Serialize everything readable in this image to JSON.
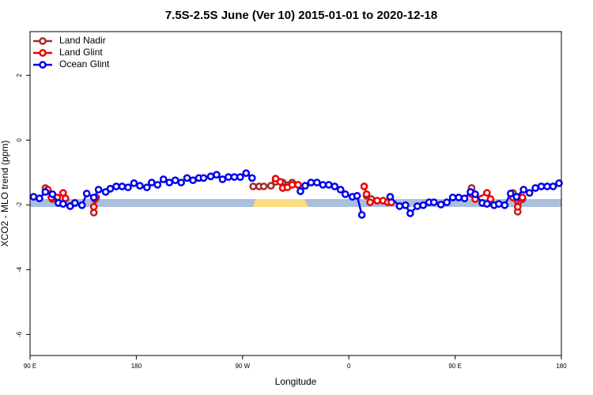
{
  "chart_data": {
    "type": "line",
    "title": "7.5S-2.5S June (Ver 10)   2015-01-01 to 2020-12-18",
    "x_label": "Longitude",
    "y_label": "XCO2 - MLO trend (ppm)",
    "xlim": [
      90,
      540
    ],
    "ylim": [
      -6.65,
      3.35
    ],
    "xticks": [
      {
        "value": 90,
        "label": "90 E"
      },
      {
        "value": 180,
        "label": "180"
      },
      {
        "value": 270,
        "label": "90 W"
      },
      {
        "value": 360,
        "label": "0"
      },
      {
        "value": 450,
        "label": "90 E"
      },
      {
        "value": 540,
        "label": "180"
      }
    ],
    "yticks": [
      -6,
      -4,
      -2,
      0,
      2
    ],
    "legend": "top-left",
    "series": [
      {
        "name": "Land Nadir",
        "color": "#a52a2a",
        "x": [
          103,
          109,
          null,
          144,
          146,
          null,
          279,
          284,
          288,
          294,
          298,
          304,
          312,
          317,
          null,
          375,
          379,
          null,
          464,
          467,
          null,
          499,
          503,
          507
        ],
        "values": [
          -1.48,
          -1.82,
          null,
          -2.24,
          -1.77,
          null,
          -1.43,
          -1.43,
          -1.43,
          -1.41,
          -1.29,
          -1.31,
          -1.31,
          -1.38,
          null,
          -1.72,
          -1.82,
          null,
          -1.48,
          -1.72,
          null,
          -1.63,
          -2.21,
          -1.82
        ]
      },
      {
        "name": "Land Glint",
        "color": "#ee0000",
        "x": [
          105,
          108,
          113,
          118,
          120,
          null,
          144,
          145,
          null,
          298,
          302,
          304,
          308,
          312,
          317,
          null,
          373,
          375,
          378,
          384,
          389,
          393,
          396,
          null,
          464,
          467,
          477,
          480,
          null,
          499,
          503,
          504,
          507
        ],
        "values": [
          -1.53,
          -1.77,
          -1.77,
          -1.63,
          -1.8,
          null,
          -2.06,
          -1.82,
          null,
          -1.19,
          -1.29,
          -1.48,
          -1.46,
          -1.38,
          -1.38,
          null,
          -1.43,
          -1.67,
          -1.92,
          -1.87,
          -1.87,
          -1.92,
          -1.92,
          null,
          -1.67,
          -1.82,
          -1.63,
          -1.82,
          null,
          -1.77,
          -2.06,
          -1.77,
          -1.77
        ]
      },
      {
        "name": "Ocean Glint",
        "color": "#0000ee",
        "x": [
          93,
          98,
          103,
          109,
          114,
          118,
          124,
          128,
          134,
          138,
          144,
          148,
          154,
          158,
          163,
          168,
          173,
          178,
          183,
          189,
          193,
          198,
          203,
          208,
          213,
          218,
          223,
          228,
          233,
          237,
          243,
          248,
          253,
          258,
          263,
          268,
          273,
          278,
          null,
          319,
          323,
          328,
          333,
          338,
          343,
          348,
          353,
          357,
          363,
          367,
          371,
          null,
          395,
          403,
          408,
          412,
          418,
          423,
          428,
          432,
          438,
          443,
          448,
          453,
          458,
          463,
          467,
          473,
          477,
          483,
          487,
          492,
          497,
          502,
          508,
          513,
          518,
          523,
          528,
          533,
          538
        ],
        "values": [
          -1.75,
          -1.8,
          -1.6,
          -1.67,
          -1.94,
          -1.97,
          -2.04,
          -1.94,
          -2.01,
          -1.65,
          -1.77,
          -1.53,
          -1.6,
          -1.5,
          -1.43,
          -1.43,
          -1.46,
          -1.33,
          -1.41,
          -1.46,
          -1.31,
          -1.38,
          -1.21,
          -1.31,
          -1.24,
          -1.31,
          -1.17,
          -1.24,
          -1.17,
          -1.17,
          -1.12,
          -1.07,
          -1.21,
          -1.14,
          -1.14,
          -1.14,
          -1.02,
          -1.17,
          null,
          -1.58,
          -1.41,
          -1.31,
          -1.31,
          -1.38,
          -1.38,
          -1.43,
          -1.53,
          -1.67,
          -1.75,
          -1.72,
          -2.31,
          null,
          -1.75,
          -2.04,
          -2.01,
          -2.26,
          -2.04,
          -2.01,
          -1.92,
          -1.92,
          -1.99,
          -1.92,
          -1.77,
          -1.77,
          -1.8,
          -1.6,
          -1.67,
          -1.94,
          -1.97,
          -2.01,
          -1.97,
          -2.01,
          -1.65,
          -1.75,
          -1.53,
          -1.63,
          -1.48,
          -1.43,
          -1.43,
          -1.43,
          -1.33
        ]
      }
    ]
  }
}
